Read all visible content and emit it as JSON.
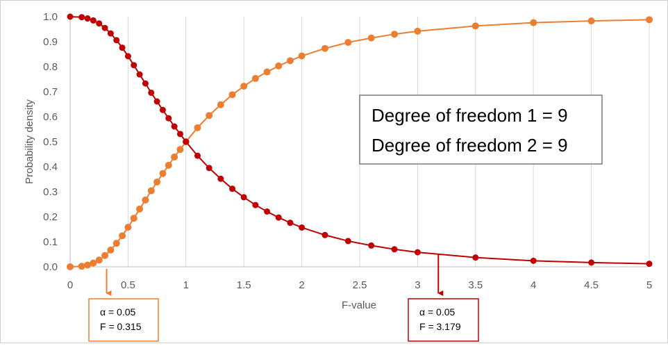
{
  "chart_data": {
    "type": "line",
    "xlabel": "F-value",
    "ylabel": "Probability density",
    "xlim": [
      0,
      5
    ],
    "ylim": [
      0,
      1.0
    ],
    "x_ticks": [
      "0",
      "0.5",
      "1",
      "1.5",
      "2",
      "2.5",
      "3",
      "3.5",
      "4",
      "4.5",
      "5"
    ],
    "x_tick_values": [
      0,
      0.5,
      1,
      1.5,
      2,
      2.5,
      3,
      3.5,
      4,
      4.5,
      5
    ],
    "y_ticks": [
      "0.0",
      "0.1",
      "0.2",
      "0.3",
      "0.4",
      "0.5",
      "0.6",
      "0.7",
      "0.8",
      "0.9",
      "1.0"
    ],
    "y_tick_values": [
      0,
      0.1,
      0.2,
      0.3,
      0.4,
      0.5,
      0.6,
      0.7,
      0.8,
      0.9,
      1.0
    ],
    "grid": "vertical",
    "legend": "none",
    "series": [
      {
        "color": "#ed7d31",
        "x": [
          0,
          0.1,
          0.15,
          0.2,
          0.25,
          0.3,
          0.35,
          0.4,
          0.45,
          0.5,
          0.55,
          0.6,
          0.65,
          0.7,
          0.75,
          0.8,
          0.85,
          0.9,
          0.95,
          1.0,
          1.1,
          1.2,
          1.3,
          1.4,
          1.5,
          1.6,
          1.7,
          1.8,
          1.9,
          2.0,
          2.2,
          2.4,
          2.6,
          2.8,
          3.0,
          3.5,
          4.0,
          4.5,
          5.0
        ],
        "y": [
          0.0,
          0.002,
          0.007,
          0.015,
          0.027,
          0.045,
          0.067,
          0.094,
          0.124,
          0.158,
          0.194,
          0.231,
          0.267,
          0.304,
          0.339,
          0.373,
          0.406,
          0.439,
          0.469,
          0.5,
          0.556,
          0.605,
          0.648,
          0.688,
          0.722,
          0.753,
          0.779,
          0.803,
          0.824,
          0.843,
          0.873,
          0.897,
          0.915,
          0.93,
          0.942,
          0.963,
          0.976,
          0.983,
          0.988
        ]
      },
      {
        "color": "#c00000",
        "x": [
          0,
          0.1,
          0.15,
          0.2,
          0.25,
          0.3,
          0.35,
          0.4,
          0.45,
          0.5,
          0.55,
          0.6,
          0.65,
          0.7,
          0.75,
          0.8,
          0.85,
          0.9,
          0.95,
          1.0,
          1.1,
          1.2,
          1.3,
          1.4,
          1.5,
          1.6,
          1.7,
          1.8,
          1.9,
          2.0,
          2.2,
          2.4,
          2.6,
          2.8,
          3.0,
          3.5,
          4.0,
          4.5,
          5.0
        ],
        "y": [
          1.0,
          0.998,
          0.993,
          0.985,
          0.973,
          0.955,
          0.933,
          0.906,
          0.876,
          0.842,
          0.806,
          0.769,
          0.733,
          0.696,
          0.661,
          0.627,
          0.594,
          0.561,
          0.531,
          0.5,
          0.444,
          0.395,
          0.352,
          0.312,
          0.278,
          0.247,
          0.221,
          0.197,
          0.176,
          0.157,
          0.127,
          0.103,
          0.085,
          0.07,
          0.058,
          0.037,
          0.024,
          0.017,
          0.012
        ]
      }
    ],
    "annotations": {
      "df_box": {
        "line1": "Degree of freedom 1 = 9",
        "line2": "Degree of freedom 2 = 9"
      },
      "left_callout": {
        "alpha": "α = 0.05",
        "f": "F = 0.315",
        "f_value": 0.315,
        "color": "#ed7d31"
      },
      "right_callout": {
        "alpha": "α = 0.05",
        "f": "F = 3.179",
        "f_value": 3.179,
        "color": "#c00000"
      }
    }
  }
}
